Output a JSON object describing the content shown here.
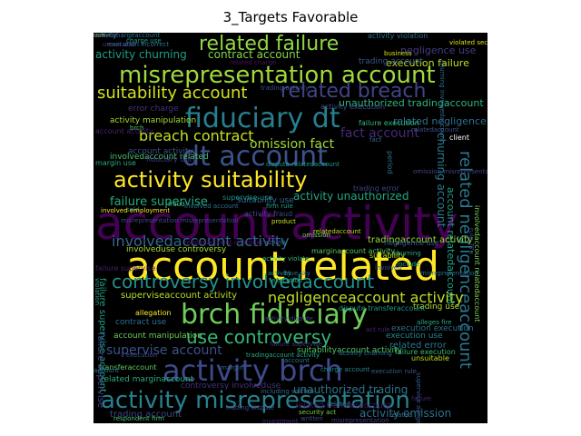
{
  "figure": {
    "title": "3_Targets Favorable"
  },
  "words": [
    {
      "text": "account activity",
      "color": "#440154"
    },
    {
      "text": "account related",
      "color": "#fde725"
    },
    {
      "text": "misrepresentation account",
      "color": "#9fda3a"
    },
    {
      "text": "fiduciary dt",
      "color": "#277f8e"
    },
    {
      "text": "dt account",
      "color": "#3b528b"
    },
    {
      "text": "activity suitability",
      "color": "#fde725"
    },
    {
      "text": "brch fiduciary",
      "color": "#6ece58"
    },
    {
      "text": "activity brch",
      "color": "#3e4989"
    },
    {
      "text": "activity misrepresentation",
      "color": "#26828e"
    },
    {
      "text": "related failure",
      "color": "#8fd744"
    },
    {
      "text": "related breach",
      "color": "#414487"
    },
    {
      "text": "suitability account",
      "color": "#d2e21b"
    },
    {
      "text": "controversy involvedaccount",
      "color": "#21918c"
    },
    {
      "text": "use controversy",
      "color": "#35b779"
    },
    {
      "text": "related negligenceaccount",
      "color": "#2a788e"
    },
    {
      "text": "breach contract",
      "color": "#c8e020"
    },
    {
      "text": "negligenceaccount activity",
      "color": "#bddf26"
    },
    {
      "text": "involvedaccount activity",
      "color": "#31688e"
    },
    {
      "text": "activity churning",
      "color": "#1f9e89"
    },
    {
      "text": "contract account",
      "color": "#86d549"
    },
    {
      "text": "omission fact",
      "color": "#a0da39"
    },
    {
      "text": "fact account",
      "color": "#482878"
    },
    {
      "text": "failure supervise",
      "color": "#25ab82"
    },
    {
      "text": "activity unauthorized",
      "color": "#22a884"
    },
    {
      "text": "unauthorized trading",
      "color": "#2c728e"
    },
    {
      "text": "activity omission",
      "color": "#2e6e8e"
    },
    {
      "text": "supervise account",
      "color": "#3b528b"
    },
    {
      "text": "churning account",
      "color": "#287c8e"
    },
    {
      "text": "account relatedaccount",
      "color": "#1fa187"
    },
    {
      "text": "negligence use",
      "color": "#433e85"
    },
    {
      "text": "execution failure",
      "color": "#c0df25"
    },
    {
      "text": "related negligence",
      "color": "#2d708e"
    },
    {
      "text": "unauthorized tradingaccount",
      "color": "#30b57e"
    },
    {
      "text": "superviseaccount activity",
      "color": "#b5de2b"
    },
    {
      "text": "activity manipulation",
      "color": "#a5db36"
    },
    {
      "text": "trading account",
      "color": "#3f4788"
    },
    {
      "text": "related error",
      "color": "#2a768e"
    },
    {
      "text": "error charge",
      "color": "#46337e"
    },
    {
      "text": "involvedaccount related",
      "color": "#4ac16d"
    },
    {
      "text": "suitability use",
      "color": "#31688e"
    },
    {
      "text": "account activity",
      "color": "#3b528b"
    },
    {
      "text": "tradingaccount activity",
      "color": "#9bd93c"
    },
    {
      "text": "suitabilityaccount activity",
      "color": "#52c569"
    },
    {
      "text": "related marginaccount",
      "color": "#29af7f"
    },
    {
      "text": "contract use",
      "color": "#2c728e"
    },
    {
      "text": "execution use",
      "color": "#25848e"
    },
    {
      "text": "trading use",
      "color": "#b2dd2d"
    },
    {
      "text": "dispute relatedaccount",
      "color": "#1e9b8a"
    },
    {
      "text": "account manipulation",
      "color": "#6ccd5a"
    },
    {
      "text": "related transferaccount",
      "color": "#471063"
    },
    {
      "text": "controversy involveduse",
      "color": "#46327e"
    },
    {
      "text": "involveduse controversy",
      "color": "#a8db34"
    },
    {
      "text": "execution execution",
      "color": "#2d708e"
    },
    {
      "text": "supervise use",
      "color": "#1f958b"
    },
    {
      "text": "trading account",
      "color": "#38588c"
    },
    {
      "text": "activity violation",
      "color": "#2e6f8e"
    },
    {
      "text": "marginaccount activity",
      "color": "#5cc863"
    },
    {
      "text": "account activity",
      "color": "#482071"
    },
    {
      "text": "transferaccount",
      "color": "#5ec962"
    },
    {
      "text": "unsuitable",
      "color": "#bade28"
    },
    {
      "text": "activity fraud",
      "color": "#3e4a89"
    },
    {
      "text": "activity execution",
      "color": "#3d4e8a"
    },
    {
      "text": "failure execution",
      "color": "#31b57b"
    },
    {
      "text": "fiduciary duty",
      "color": "#433d84"
    },
    {
      "text": "client",
      "color": "#ffffff"
    },
    {
      "text": "omission",
      "color": "#6ccd5a"
    },
    {
      "text": "relatedaccount",
      "color": "#c2df23"
    },
    {
      "text": "margin use",
      "color": "#25ab82"
    },
    {
      "text": "failure supervise",
      "color": "#481b6d"
    },
    {
      "text": "failure supervise account",
      "color": "#1f9f88"
    },
    {
      "text": "failure supervise",
      "color": "#404688"
    },
    {
      "text": "involvedaccount relatedaccount",
      "color": "#7ad151"
    },
    {
      "text": "failure execution",
      "color": "#37b878"
    },
    {
      "text": "negligence use",
      "color": "#365c8d"
    },
    {
      "text": "violated section",
      "color": "#e5e419"
    },
    {
      "text": "execution incorrect",
      "color": "#2d708e"
    },
    {
      "text": "charge use",
      "color": "#1f998a"
    },
    {
      "text": "business",
      "color": "#dfe318"
    },
    {
      "text": "error chargeaccount",
      "color": "#2a788e"
    },
    {
      "text": "trading error",
      "color": "#424086"
    },
    {
      "text": "fraud",
      "color": "#38b977"
    },
    {
      "text": "sold",
      "color": "#277e8e"
    },
    {
      "text": "product",
      "color": "#c6e021"
    },
    {
      "text": "fact",
      "color": "#31688e"
    },
    {
      "text": "relatedaccount",
      "color": "#3b528b"
    },
    {
      "text": "brch",
      "color": "#4ec36b"
    },
    {
      "text": "act rule",
      "color": "#482475"
    },
    {
      "text": "alleges fire",
      "color": "#26ad81"
    },
    {
      "text": "suitability",
      "color": "#b8de29"
    },
    {
      "text": "include",
      "color": "#1fa088"
    },
    {
      "text": "execution rule",
      "color": "#375a8c"
    },
    {
      "text": "allegation",
      "color": "#fde725"
    },
    {
      "text": "supervise alleges",
      "color": "#365d8d"
    },
    {
      "text": "blue sky",
      "color": "#2f6c8e"
    },
    {
      "text": "churning involvedaccount",
      "color": "#2f6b8e"
    },
    {
      "text": "misrepresentation misrepresentation",
      "color": "#3f4889"
    },
    {
      "text": "involved employment",
      "color": "#fde725"
    },
    {
      "text": "involved account",
      "color": "#2b758e"
    },
    {
      "text": "related charge",
      "color": "#471365"
    },
    {
      "text": "including written",
      "color": "#2f6b8e"
    },
    {
      "text": "trading dispute",
      "color": "#3e4989"
    },
    {
      "text": "investment",
      "color": "#482677"
    },
    {
      "text": "unsuitable",
      "color": "#453882"
    },
    {
      "text": "security act",
      "color": "#7fd34e"
    },
    {
      "text": "charge account",
      "color": "#23898e"
    },
    {
      "text": "written",
      "color": "#3e4c8a"
    },
    {
      "text": "misrepresentation",
      "color": "#443a83"
    },
    {
      "text": "violation",
      "color": "#20a386"
    },
    {
      "text": "account",
      "color": "#2c728e"
    },
    {
      "text": "respondent firm",
      "color": "#4ac16d"
    },
    {
      "text": "rule 77a",
      "color": "#3e4a89"
    },
    {
      "text": "activity violate",
      "color": "#35b779"
    },
    {
      "text": "trading activity",
      "color": "#3d4e8a"
    },
    {
      "text": "failure supervise",
      "color": "#46307e"
    },
    {
      "text": "activity dispute",
      "color": "#443983"
    },
    {
      "text": "dispute transferaccount",
      "color": "#1f948c"
    },
    {
      "text": "account",
      "color": "#2a768e"
    },
    {
      "text": "tradingaccount activity",
      "color": "#25ac82"
    },
    {
      "text": "execution",
      "color": "#3c4f8a"
    },
    {
      "text": "activity",
      "color": "#24868e"
    },
    {
      "text": "margin",
      "color": "#31678e"
    },
    {
      "text": "firm rule",
      "color": "#1fa188"
    },
    {
      "text": "period",
      "color": "#2b748e"
    },
    {
      "text": "omission misrepresentation",
      "color": "#414487"
    },
    {
      "text": "activity churning",
      "color": "#2a778e"
    },
    {
      "text": "churning",
      "color": "#26ad81"
    },
    {
      "text": "relatedaccount relatedaccount",
      "color": "#481668"
    },
    {
      "text": "activity",
      "color": "#218e8d"
    },
    {
      "text": "execution",
      "color": "#29af7f"
    },
    {
      "text": "involved",
      "color": "#3b518b"
    },
    {
      "text": "misrepresentation",
      "color": "#2e6f8e"
    },
    {
      "text": "failure",
      "color": "#482475"
    },
    {
      "text": "related",
      "color": "#26818e"
    },
    {
      "text": "related",
      "color": "#2c738e"
    },
    {
      "text": "activity",
      "color": "#3e4a89"
    },
    {
      "text": "activity",
      "color": "#21a685"
    },
    {
      "text": "use",
      "color": "#c2df23"
    },
    {
      "text": "account",
      "color": "#472f7d"
    }
  ]
}
